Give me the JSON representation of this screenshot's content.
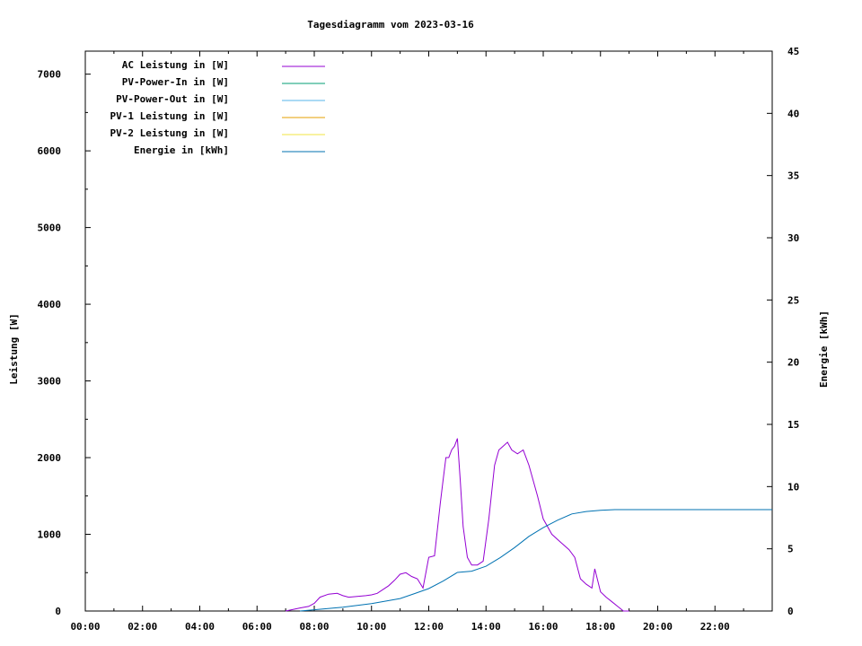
{
  "chart_data": {
    "type": "line",
    "title": "Tagesdiagramm vom 2023-03-16",
    "ylabel": "Leistung [W]",
    "y2label": "Energie [kWh]",
    "xlim": [
      0,
      24
    ],
    "ylim": [
      0,
      7300
    ],
    "y2lim": [
      0,
      45
    ],
    "x_ticks": [
      "00:00",
      "02:00",
      "04:00",
      "06:00",
      "08:00",
      "10:00",
      "12:00",
      "14:00",
      "16:00",
      "18:00",
      "20:00",
      "22:00"
    ],
    "y_ticks": [
      "0",
      "1000",
      "2000",
      "3000",
      "4000",
      "5000",
      "6000",
      "7000"
    ],
    "y2_ticks": [
      "0",
      "5",
      "10",
      "15",
      "20",
      "25",
      "30",
      "35",
      "40",
      "45"
    ],
    "grid": false,
    "legend_position": "top-left",
    "series": [
      {
        "name": "AC Leistung in [W]",
        "axis": "y",
        "color": "#9400d3",
        "x": [
          7.0,
          7.5,
          7.8,
          8.0,
          8.2,
          8.5,
          8.8,
          9.0,
          9.2,
          9.5,
          9.8,
          10.0,
          10.2,
          10.4,
          10.6,
          10.8,
          11.0,
          11.2,
          11.4,
          11.6,
          11.8,
          12.0,
          12.2,
          12.4,
          12.5,
          12.6,
          12.7,
          12.8,
          12.9,
          13.0,
          13.1,
          13.2,
          13.35,
          13.5,
          13.7,
          13.9,
          14.1,
          14.3,
          14.45,
          14.6,
          14.75,
          14.9,
          15.1,
          15.3,
          15.5,
          15.8,
          16.0,
          16.3,
          16.6,
          16.9,
          17.1,
          17.3,
          17.5,
          17.7,
          17.8,
          18.0,
          18.2,
          18.4,
          18.6,
          18.8,
          19.0
        ],
        "y": [
          0,
          40,
          60,
          100,
          180,
          220,
          230,
          200,
          180,
          190,
          200,
          210,
          230,
          280,
          330,
          400,
          480,
          500,
          450,
          420,
          300,
          700,
          720,
          1400,
          1700,
          2000,
          2000,
          2100,
          2150,
          2250,
          1700,
          1100,
          700,
          600,
          600,
          650,
          1200,
          1900,
          2100,
          2150,
          2200,
          2100,
          2050,
          2100,
          1900,
          1500,
          1200,
          1000,
          900,
          800,
          700,
          420,
          350,
          300,
          550,
          250,
          180,
          120,
          60,
          0,
          0
        ]
      },
      {
        "name": "PV-Power-In in [W]",
        "axis": "y",
        "color": "#009e73",
        "x": [],
        "y": []
      },
      {
        "name": "PV-Power-Out in [W]",
        "axis": "y",
        "color": "#56b4e9",
        "x": [],
        "y": []
      },
      {
        "name": "PV-1 Leistung in [W]",
        "axis": "y",
        "color": "#e69f00",
        "x": [],
        "y": []
      },
      {
        "name": "PV-2 Leistung in [W]",
        "axis": "y",
        "color": "#f0e442",
        "x": [],
        "y": []
      },
      {
        "name": "Energie in [kWh]",
        "axis": "y2",
        "color": "#0072b2",
        "x": [
          7.5,
          8.0,
          9.0,
          10.0,
          11.0,
          11.5,
          12.0,
          12.5,
          13.0,
          13.5,
          14.0,
          14.5,
          15.0,
          15.5,
          16.0,
          16.5,
          17.0,
          17.5,
          18.0,
          18.5,
          19.0,
          20.0,
          22.0,
          24.0
        ],
        "y": [
          0,
          0.1,
          0.3,
          0.6,
          1.0,
          1.4,
          1.8,
          2.4,
          3.1,
          3.2,
          3.6,
          4.3,
          5.1,
          6.0,
          6.7,
          7.3,
          7.8,
          8.0,
          8.1,
          8.15,
          8.15,
          8.15,
          8.15,
          8.15
        ]
      }
    ]
  }
}
